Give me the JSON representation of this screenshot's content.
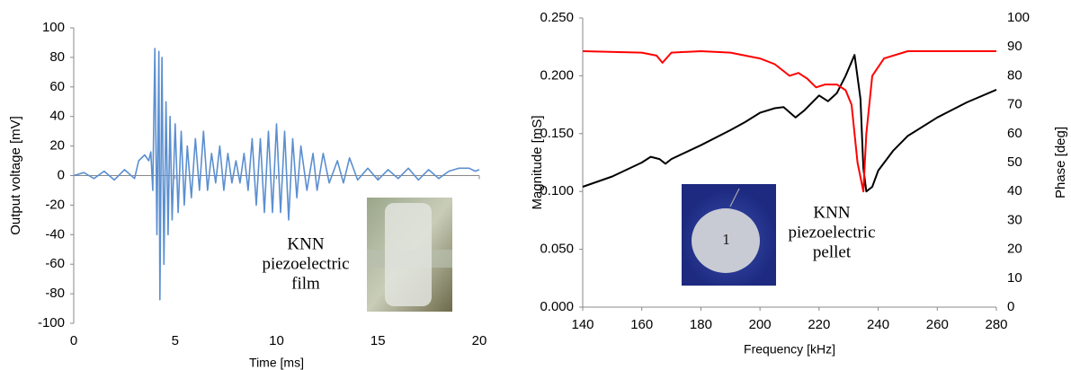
{
  "chart_data": [
    {
      "type": "line",
      "x_label": "Time [ms]",
      "y_label": "Output voltage [mV]",
      "annotation": [
        "KNN",
        "piezoelectric",
        "film"
      ],
      "x": [
        0,
        0.5,
        1,
        1.5,
        2,
        2.5,
        3,
        3.2,
        3.5,
        3.7,
        3.8,
        3.9,
        4.0,
        4.1,
        4.2,
        4.25,
        4.35,
        4.45,
        4.55,
        4.65,
        4.75,
        4.85,
        5.0,
        5.15,
        5.3,
        5.45,
        5.6,
        5.8,
        6.0,
        6.2,
        6.4,
        6.6,
        6.8,
        7.0,
        7.2,
        7.4,
        7.6,
        7.8,
        8.0,
        8.2,
        8.4,
        8.6,
        8.8,
        9.0,
        9.2,
        9.4,
        9.6,
        9.8,
        10.0,
        10.2,
        10.4,
        10.6,
        10.8,
        11.0,
        11.2,
        11.5,
        11.8,
        12.0,
        12.3,
        12.6,
        13.0,
        13.3,
        13.6,
        14.0,
        14.5,
        15,
        15.5,
        16,
        16.5,
        17,
        17.5,
        18,
        18.5,
        19,
        19.5,
        19.8,
        20
      ],
      "values": [
        0,
        2,
        -2,
        3,
        -3,
        4,
        -2,
        10,
        14,
        10,
        16,
        -10,
        86,
        -40,
        84,
        -84,
        80,
        -60,
        50,
        -40,
        40,
        -30,
        35,
        -25,
        30,
        -20,
        20,
        -15,
        25,
        -10,
        30,
        -10,
        15,
        -5,
        20,
        -10,
        15,
        -5,
        10,
        -5,
        15,
        -10,
        25,
        -20,
        25,
        -25,
        30,
        -25,
        35,
        -25,
        30,
        -30,
        25,
        -15,
        20,
        -10,
        15,
        -10,
        15,
        -5,
        10,
        -5,
        12,
        -3,
        5,
        -3,
        4,
        -2,
        5,
        -3,
        4,
        -2,
        3,
        5,
        5,
        3,
        4
      ],
      "color": "#5b8fd0",
      "xlim": [
        0,
        20
      ],
      "xticks": [
        0,
        5,
        10,
        15,
        20
      ],
      "ylim": [
        -100,
        100
      ],
      "yticks": [
        -100,
        -80,
        -60,
        -40,
        -20,
        0,
        20,
        40,
        60,
        80,
        100
      ],
      "grid": false
    },
    {
      "type": "line",
      "x_label": "Frequency [kHz]",
      "y_label": "Magnitude [mS]",
      "y2_label": "Phase [deg]",
      "annotation": [
        "KNN",
        "piezoelectric",
        "pellet"
      ],
      "series": [
        {
          "color": "#000000",
          "x": [
            140,
            150,
            160,
            163,
            166,
            168,
            170,
            180,
            190,
            195,
            200,
            205,
            208,
            212,
            215,
            220,
            223,
            226,
            229,
            232,
            234,
            235,
            236,
            238,
            240,
            245,
            250,
            260,
            270,
            280
          ],
          "values": [
            0.104,
            0.113,
            0.125,
            0.13,
            0.128,
            0.124,
            0.128,
            0.14,
            0.153,
            0.16,
            0.168,
            0.172,
            0.173,
            0.164,
            0.17,
            0.183,
            0.178,
            0.185,
            0.2,
            0.218,
            0.18,
            0.12,
            0.1,
            0.104,
            0.118,
            0.135,
            0.148,
            0.164,
            0.177,
            0.188
          ]
        },
        {
          "color": "#ff0000",
          "axis": "y2",
          "x": [
            140,
            160,
            165,
            167,
            170,
            180,
            190,
            200,
            205,
            210,
            213,
            216,
            219,
            222,
            226,
            229,
            231,
            233,
            235,
            236,
            238,
            242,
            250,
            280
          ],
          "values": [
            88.5,
            88,
            87,
            84.5,
            88,
            88.5,
            88,
            86,
            84,
            80,
            81,
            79,
            76,
            77,
            77,
            75,
            70,
            50,
            40,
            60,
            80,
            86,
            88.5,
            88.5
          ]
        }
      ],
      "xlim": [
        140,
        280
      ],
      "xticks": [
        140,
        160,
        180,
        200,
        220,
        240,
        260,
        280
      ],
      "ylim": [
        0,
        0.25
      ],
      "yticks": [
        {
          "value": 0,
          "label": "0.000"
        },
        {
          "value": 0.05,
          "label": "0.050"
        },
        {
          "value": 0.1,
          "label": "0.100"
        },
        {
          "value": 0.15,
          "label": "0.150"
        },
        {
          "value": 0.2,
          "label": "0.200"
        },
        {
          "value": 0.25,
          "label": "0.250"
        }
      ],
      "y2lim": [
        0,
        100
      ],
      "y2ticks": [
        0,
        10,
        20,
        30,
        40,
        50,
        60,
        70,
        80,
        90,
        100
      ],
      "grid": false
    }
  ]
}
